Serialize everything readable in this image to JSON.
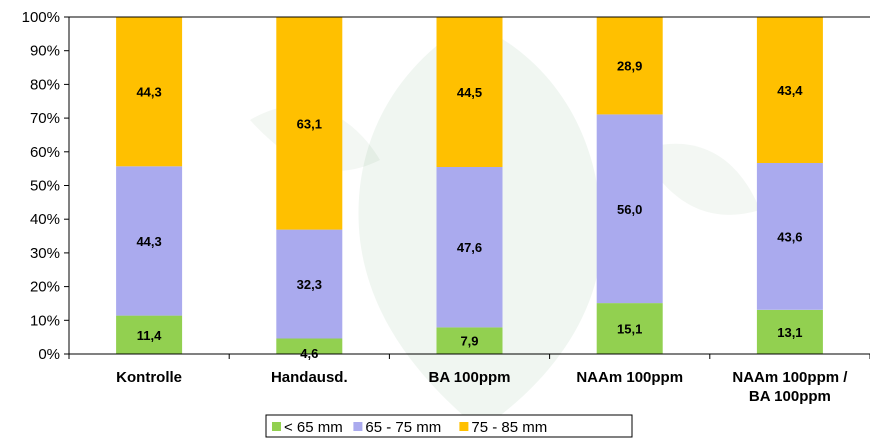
{
  "chart_data": {
    "type": "bar",
    "stacked": true,
    "percent_stacked": true,
    "categories": [
      [
        "Kontrolle"
      ],
      [
        "Handausd."
      ],
      [
        "BA 100ppm"
      ],
      [
        "NAAm 100ppm"
      ],
      [
        "NAAm 100ppm /",
        "BA 100ppm"
      ]
    ],
    "series": [
      {
        "name": "< 65 mm",
        "color": "#92d050",
        "values": [
          11.4,
          4.6,
          7.9,
          15.1,
          13.1
        ],
        "labels": [
          "11,4",
          "4,6",
          "7,9",
          "15,1",
          "13,1"
        ]
      },
      {
        "name": "65 - 75 mm",
        "color": "#aaaaee",
        "values": [
          44.3,
          32.3,
          47.6,
          56.0,
          43.6
        ],
        "labels": [
          "44,3",
          "32,3",
          "47,6",
          "56,0",
          "43,6"
        ]
      },
      {
        "name": "75 - 85 mm",
        "color": "#ffc000",
        "values": [
          44.3,
          63.1,
          44.5,
          28.9,
          43.4
        ],
        "labels": [
          "44,3",
          "63,1",
          "44,5",
          "28,9",
          "43,4"
        ]
      }
    ],
    "ylim": [
      0,
      100
    ],
    "yticks": [
      "0%",
      "10%",
      "20%",
      "30%",
      "40%",
      "50%",
      "60%",
      "70%",
      "80%",
      "90%",
      "100%"
    ],
    "grid": false,
    "legend": "bottom-center"
  }
}
